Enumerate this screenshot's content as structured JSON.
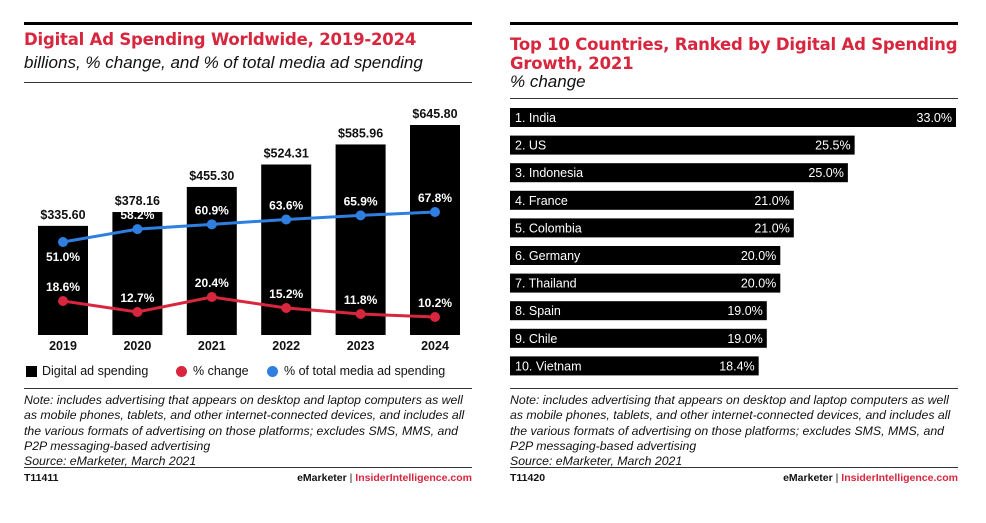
{
  "left": {
    "title": "Digital Ad Spending Worldwide, 2019-2024",
    "subtitle": "billions, % change, and % of total media ad spending",
    "legend": {
      "spending": "Digital ad spending",
      "change": "% change",
      "share": "% of total media ad spending"
    },
    "note": "Note: includes advertising that appears on desktop and laptop computers as well as mobile phones, tablets, and other internet-connected devices, and includes all the various formats of advertising on those platforms; excludes SMS, MMS, and P2P messaging-based advertising",
    "source": "Source: eMarketer, March 2021",
    "code": "T11411",
    "brand1": "eMarketer",
    "brand_sep": "|",
    "brand2": "InsiderIntelligence.com"
  },
  "right": {
    "title_line1": "Top 10 Countries, Ranked by Digital Ad Spending",
    "title_line2": "Growth, 2021",
    "subtitle": "% change",
    "note": "Note: includes advertising that appears on desktop and laptop computers as well as mobile phones, tablets, and other internet-connected devices, and includes all the various formats of advertising on those platforms; excludes SMS, MMS, and P2P messaging-based advertising",
    "source": "Source: eMarketer, March 2021",
    "code": "T11420",
    "brand1": "eMarketer",
    "brand_sep": "|",
    "brand2": "InsiderIntelligence.com"
  },
  "colors": {
    "bar": "#000000",
    "change_line": "#d7263d",
    "share_line": "#2f7fe0",
    "title": "#d7263d"
  },
  "chart_data": [
    {
      "type": "bar",
      "title": "Digital Ad Spending Worldwide, 2019-2024",
      "subtitle": "billions, % change, and % of total media ad spending",
      "categories": [
        "2019",
        "2020",
        "2021",
        "2022",
        "2023",
        "2024"
      ],
      "series": [
        {
          "name": "Digital ad spending",
          "kind": "bar",
          "values": [
            335.6,
            378.16,
            455.3,
            524.31,
            585.96,
            645.8
          ],
          "labels": [
            "$335.60",
            "$378.16",
            "$455.30",
            "$524.31",
            "$585.96",
            "$645.80"
          ]
        },
        {
          "name": "% change",
          "kind": "line",
          "values": [
            18.6,
            12.7,
            20.4,
            15.2,
            11.8,
            10.2
          ],
          "labels": [
            "18.6%",
            "12.7%",
            "20.4%",
            "15.2%",
            "11.8%",
            "10.2%"
          ]
        },
        {
          "name": "% of total media ad spending",
          "kind": "line",
          "values": [
            51.0,
            58.2,
            60.9,
            63.6,
            65.9,
            67.8
          ],
          "labels": [
            "51.0%",
            "58.2%",
            "60.9%",
            "63.6%",
            "65.9%",
            "67.8%"
          ]
        }
      ],
      "legend_position": "bottom",
      "grid": false
    },
    {
      "type": "bar",
      "orientation": "horizontal",
      "title": "Top 10 Countries, Ranked by Digital Ad Spending Growth, 2021",
      "subtitle": "% change",
      "categories": [
        "1. India",
        "2. US",
        "3. Indonesia",
        "4. France",
        "5. Colombia",
        "6. Germany",
        "7. Thailand",
        "8. Spain",
        "9. Chile",
        "10. Vietnam"
      ],
      "values": [
        33.0,
        25.5,
        25.0,
        21.0,
        21.0,
        20.0,
        20.0,
        19.0,
        19.0,
        18.4
      ],
      "labels": [
        "33.0%",
        "25.5%",
        "25.0%",
        "21.0%",
        "21.0%",
        "20.0%",
        "20.0%",
        "19.0%",
        "19.0%",
        "18.4%"
      ],
      "grid": false
    }
  ]
}
